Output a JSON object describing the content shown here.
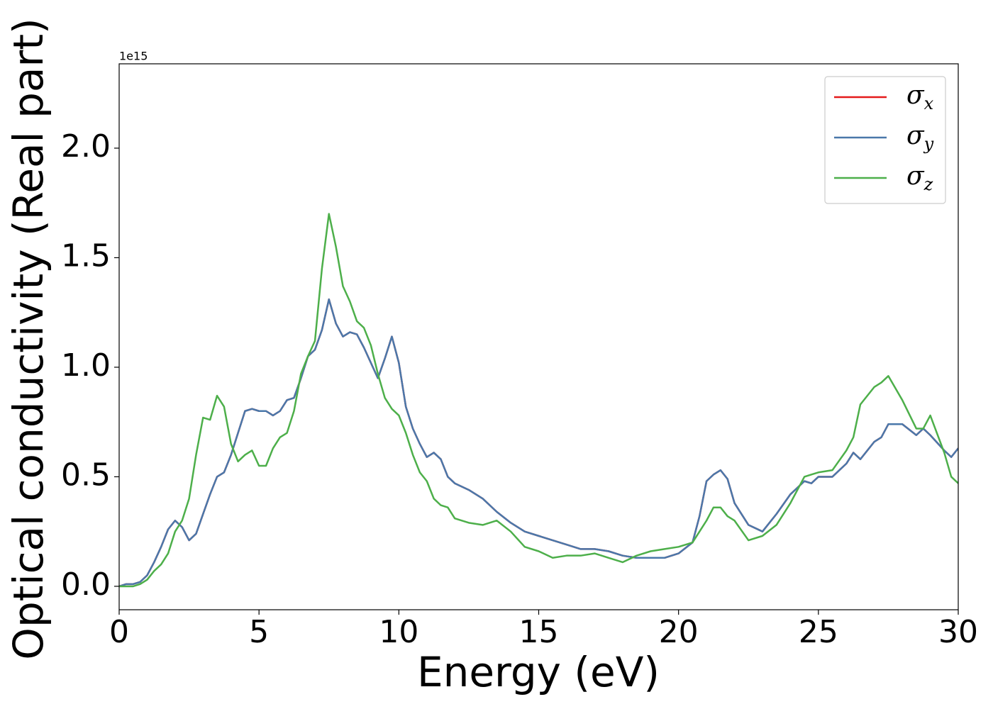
{
  "chart_data": {
    "type": "line",
    "xlabel": "Energy (eV)",
    "ylabel": "Optical conductivity (Real part)",
    "offset_text": "1e15",
    "x": [
      0,
      0.25,
      0.5,
      0.75,
      1,
      1.25,
      1.5,
      1.75,
      2,
      2.25,
      2.5,
      2.75,
      3,
      3.25,
      3.5,
      3.75,
      4,
      4.25,
      4.5,
      4.75,
      5,
      5.25,
      5.5,
      5.75,
      6,
      6.25,
      6.5,
      6.75,
      7,
      7.25,
      7.5,
      7.75,
      8,
      8.25,
      8.5,
      8.75,
      9,
      9.25,
      9.5,
      9.75,
      10,
      10.25,
      10.5,
      10.75,
      11,
      11.25,
      11.5,
      11.75,
      12,
      12.5,
      13,
      13.5,
      14,
      14.5,
      15,
      15.5,
      16,
      16.5,
      17,
      17.5,
      18,
      18.5,
      19,
      19.5,
      20,
      20.5,
      20.75,
      21,
      21.25,
      21.5,
      21.75,
      22,
      22.5,
      23,
      23.5,
      24,
      24.5,
      24.75,
      25,
      25.5,
      26,
      26.25,
      26.5,
      27,
      27.25,
      27.5,
      28,
      28.5,
      28.75,
      29,
      29.5,
      29.75,
      30
    ],
    "series": [
      {
        "name": "σx",
        "color": "#e41a1c",
        "values": [
          0,
          0.01,
          0.01,
          0.02,
          0.05,
          0.11,
          0.18,
          0.26,
          0.3,
          0.27,
          0.21,
          0.24,
          0.33,
          0.42,
          0.5,
          0.52,
          0.6,
          0.7,
          0.8,
          0.81,
          0.8,
          0.8,
          0.78,
          0.8,
          0.85,
          0.86,
          0.95,
          1.05,
          1.08,
          1.17,
          1.31,
          1.2,
          1.14,
          1.16,
          1.15,
          1.09,
          1.02,
          0.95,
          1.04,
          1.14,
          1.02,
          0.82,
          0.72,
          0.65,
          0.59,
          0.61,
          0.58,
          0.5,
          0.47,
          0.44,
          0.4,
          0.34,
          0.29,
          0.25,
          0.23,
          0.21,
          0.19,
          0.17,
          0.17,
          0.16,
          0.14,
          0.13,
          0.13,
          0.13,
          0.15,
          0.2,
          0.32,
          0.48,
          0.51,
          0.53,
          0.49,
          0.38,
          0.28,
          0.25,
          0.33,
          0.42,
          0.48,
          0.47,
          0.5,
          0.5,
          0.56,
          0.61,
          0.58,
          0.66,
          0.68,
          0.74,
          0.74,
          0.69,
          0.72,
          0.69,
          0.62,
          0.59,
          0.63
        ]
      },
      {
        "name": "σy",
        "color": "#4a78aa",
        "values": [
          0,
          0.01,
          0.01,
          0.02,
          0.05,
          0.11,
          0.18,
          0.26,
          0.3,
          0.27,
          0.21,
          0.24,
          0.33,
          0.42,
          0.5,
          0.52,
          0.6,
          0.7,
          0.8,
          0.81,
          0.8,
          0.8,
          0.78,
          0.8,
          0.85,
          0.86,
          0.95,
          1.05,
          1.08,
          1.17,
          1.31,
          1.2,
          1.14,
          1.16,
          1.15,
          1.09,
          1.02,
          0.95,
          1.04,
          1.14,
          1.02,
          0.82,
          0.72,
          0.65,
          0.59,
          0.61,
          0.58,
          0.5,
          0.47,
          0.44,
          0.4,
          0.34,
          0.29,
          0.25,
          0.23,
          0.21,
          0.19,
          0.17,
          0.17,
          0.16,
          0.14,
          0.13,
          0.13,
          0.13,
          0.15,
          0.2,
          0.32,
          0.48,
          0.51,
          0.53,
          0.49,
          0.38,
          0.28,
          0.25,
          0.33,
          0.42,
          0.48,
          0.47,
          0.5,
          0.5,
          0.56,
          0.61,
          0.58,
          0.66,
          0.68,
          0.74,
          0.74,
          0.69,
          0.72,
          0.69,
          0.62,
          0.59,
          0.63
        ]
      },
      {
        "name": "σz",
        "color": "#4daf4a",
        "values": [
          0,
          0,
          0,
          0.01,
          0.03,
          0.07,
          0.1,
          0.15,
          0.25,
          0.3,
          0.4,
          0.6,
          0.77,
          0.76,
          0.87,
          0.82,
          0.65,
          0.57,
          0.6,
          0.62,
          0.55,
          0.55,
          0.63,
          0.68,
          0.7,
          0.8,
          0.97,
          1.05,
          1.12,
          1.45,
          1.7,
          1.55,
          1.37,
          1.3,
          1.21,
          1.18,
          1.1,
          0.97,
          0.86,
          0.81,
          0.78,
          0.7,
          0.6,
          0.52,
          0.48,
          0.4,
          0.37,
          0.36,
          0.31,
          0.29,
          0.28,
          0.3,
          0.25,
          0.18,
          0.16,
          0.13,
          0.14,
          0.14,
          0.15,
          0.13,
          0.11,
          0.14,
          0.16,
          0.17,
          0.18,
          0.2,
          0.25,
          0.3,
          0.36,
          0.36,
          0.32,
          0.3,
          0.21,
          0.23,
          0.28,
          0.38,
          0.5,
          0.51,
          0.52,
          0.53,
          0.62,
          0.68,
          0.83,
          0.91,
          0.93,
          0.96,
          0.85,
          0.72,
          0.72,
          0.78,
          0.61,
          0.5,
          0.47
        ]
      }
    ],
    "xlim": [
      0,
      30
    ],
    "xticks": [
      0,
      5,
      10,
      15,
      20,
      25,
      30
    ],
    "ylim": [
      -0.107,
      2.385
    ],
    "yticks": [
      {
        "value": 0,
        "label": "0.0"
      },
      0.5,
      {
        "value": 1,
        "label": "1.0"
      },
      1.5,
      {
        "value": 2,
        "label": "2.0"
      }
    ],
    "grid": false,
    "legend": "upper right"
  }
}
